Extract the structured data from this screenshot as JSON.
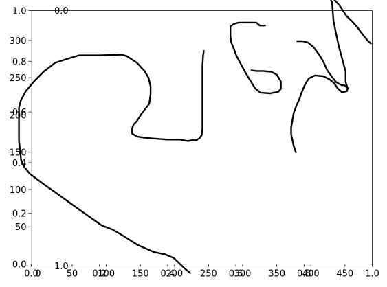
{
  "chart_data": [
    {
      "type": "line",
      "description_role": "outer axes (frame)",
      "xlim": [
        0,
        1
      ],
      "ylim": [
        0,
        1
      ],
      "x_ticks": [
        0.0,
        0.2,
        0.4,
        0.6,
        0.8,
        1.0
      ],
      "x_tick_labels": [
        "0.0",
        "0.2",
        "0.4",
        "0.6",
        "0.8",
        "1.0"
      ],
      "y_ticks": [
        0.0,
        0.2,
        0.4,
        0.6,
        0.8,
        1.0
      ],
      "y_tick_labels": [
        "0.0",
        "0.2",
        "0.4",
        "0.6",
        "0.8",
        "1.0"
      ],
      "grid": false,
      "series": []
    },
    {
      "type": "line",
      "description_role": "inner axes (handwriting strokes)",
      "xlim": [
        -10,
        490
      ],
      "ylim": [
        0,
        340
      ],
      "x_ticks": [
        0,
        50,
        100,
        150,
        200,
        250,
        300,
        350,
        400,
        450
      ],
      "x_tick_labels": [
        "0",
        "50",
        "100",
        "150",
        "200",
        "250",
        "300",
        "350",
        "400",
        "450"
      ],
      "y_ticks": [
        0,
        50,
        100,
        150,
        200,
        250,
        300
      ],
      "y_tick_labels": [
        "0",
        "50",
        "100",
        "150",
        "200",
        "250",
        "300"
      ],
      "extra_labels": [
        {
          "text": "0.0",
          "near": "top-left"
        },
        {
          "text": "1.0",
          "near": "bottom-left"
        }
      ],
      "grid": false,
      "series": [
        {
          "points": [
            [
              223,
              12
            ],
            [
              215,
              6
            ],
            [
              199,
              -8
            ],
            [
              186,
              -13
            ],
            [
              170,
              -16
            ],
            [
              145,
              -26
            ],
            [
              128,
              -36
            ],
            [
              110,
              -46
            ],
            [
              93,
              -52
            ],
            [
              62,
              -72
            ],
            [
              45,
              -83
            ],
            [
              24,
              -97
            ],
            [
              10,
              -106
            ],
            [
              -12,
              -121
            ],
            [
              -21,
              -131
            ],
            [
              -25,
              -140
            ],
            [
              -26,
              -150
            ],
            [
              -28,
              -165
            ],
            [
              -28,
              -180
            ],
            [
              -28,
              -195
            ],
            [
              -28,
              -210
            ],
            [
              -25,
              -220
            ],
            [
              -18,
              -232
            ],
            [
              -5,
              -246
            ],
            [
              8,
              -258
            ],
            [
              25,
              -270
            ],
            [
              42,
              -275
            ],
            [
              60,
              -280
            ],
            [
              92,
              -280
            ],
            [
              122,
              -281
            ],
            [
              130,
              -279
            ],
            [
              145,
              -270
            ],
            [
              156,
              -259
            ],
            [
              162,
              -250
            ],
            [
              165,
              -238
            ],
            [
              165,
              -228
            ],
            [
              163,
              -215
            ],
            [
              152,
              -202
            ],
            [
              145,
              -192
            ],
            [
              140,
              -187
            ],
            [
              138,
              -182
            ],
            [
              138,
              -175
            ],
            [
              145,
              -171
            ],
            [
              160,
              -169
            ],
            [
              175,
              -168
            ],
            [
              190,
              -167
            ],
            [
              200,
              -167
            ],
            [
              209,
              -167
            ],
            [
              213,
              -166
            ],
            [
              220,
              -165
            ],
            [
              225,
              -166
            ],
            [
              232,
              -166
            ],
            [
              237,
              -169
            ],
            [
              240,
              -173
            ],
            [
              241,
              -182
            ],
            [
              241,
              -195
            ],
            [
              241,
              -215
            ],
            [
              241,
              -245
            ],
            [
              241,
              -265
            ],
            [
              242,
              -280
            ],
            [
              243,
              -286
            ]
          ]
        },
        {
          "points": [
            [
              333,
              -320
            ],
            [
              325,
              -320
            ],
            [
              320,
              -324
            ],
            [
              306,
              -324
            ],
            [
              294,
              -324
            ],
            [
              287,
              -322
            ],
            [
              282,
              -319
            ],
            [
              282,
              -306
            ],
            [
              283,
              -298
            ],
            [
              287,
              -289
            ],
            [
              291,
              -279
            ],
            [
              297,
              -269
            ],
            [
              304,
              -257
            ],
            [
              312,
              -245
            ],
            [
              318,
              -236
            ],
            [
              326,
              -230
            ],
            [
              340,
              -229
            ],
            [
              352,
              -231
            ],
            [
              356,
              -235
            ],
            [
              356,
              -245
            ],
            [
              350,
              -254
            ],
            [
              342,
              -258
            ],
            [
              330,
              -259
            ],
            [
              320,
              -259
            ],
            [
              313,
              -260
            ]
          ]
        },
        {
          "points": [
            [
              380,
              -299
            ],
            [
              388,
              -299
            ],
            [
              396,
              -297
            ],
            [
              404,
              -291
            ],
            [
              412,
              -281
            ],
            [
              418,
              -272
            ],
            [
              424,
              -260
            ],
            [
              431,
              -251
            ],
            [
              437,
              -244
            ],
            [
              445,
              -240
            ],
            [
              449,
              -240
            ],
            [
              454,
              -236
            ],
            [
              453,
              -232
            ],
            [
              449,
              -231
            ],
            [
              445,
              -231
            ],
            [
              439,
              -236
            ],
            [
              434,
              -243
            ],
            [
              427,
              -248
            ],
            [
              418,
              -252
            ],
            [
              406,
              -253
            ],
            [
              397,
              -249
            ],
            [
              391,
              -240
            ],
            [
              386,
              -229
            ],
            [
              383,
              -221
            ],
            [
              379,
              -213
            ],
            [
              375,
              -203
            ],
            [
              373,
              -193
            ],
            [
              371,
              -183
            ],
            [
              371,
              -174
            ],
            [
              373,
              -166
            ],
            [
              375,
              -158
            ],
            [
              378,
              -150
            ]
          ]
        },
        {
          "points": [
            [
              454,
              -236
            ],
            [
              451,
              -244
            ],
            [
              451,
              -258
            ],
            [
              446,
              -275
            ],
            [
              441,
              -292
            ],
            [
              437,
              -309
            ],
            [
              433,
              -327
            ],
            [
              432,
              -340
            ],
            [
              431,
              -351
            ],
            [
              429,
              -355
            ],
            [
              430,
              -357
            ],
            [
              431,
              -357
            ],
            [
              434,
              -355
            ],
            [
              437,
              -352
            ],
            [
              442,
              -347
            ],
            [
              447,
              -340
            ],
            [
              452,
              -333
            ],
            [
              460,
              -326
            ],
            [
              468,
              -318
            ],
            [
              476,
              -308
            ],
            [
              483,
              -300
            ],
            [
              488,
              -296
            ]
          ]
        }
      ]
    }
  ]
}
